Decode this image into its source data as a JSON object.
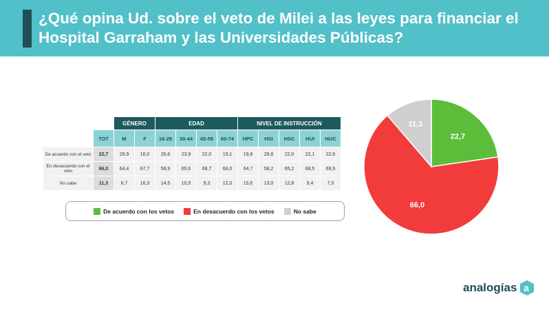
{
  "title": "¿Qué opina Ud. sobre el veto de Milei a las leyes para financiar el Hospital Garraham y las Universidades Públicas?",
  "table": {
    "groups": [
      "GÉNERO",
      "EDAD",
      "NIVEL DE INSTRUCCIÓN"
    ],
    "columns": [
      "TOT",
      "M",
      "F",
      "16-29",
      "30-44",
      "45-59",
      "60-74",
      "HPC",
      "HSI",
      "HSC",
      "HUI",
      "HUC"
    ],
    "rows": [
      {
        "label": "De acuerdo con el veto",
        "values": [
          "22,7",
          "28,9",
          "16,0",
          "26,6",
          "23,9",
          "22,0",
          "19,1",
          "19,8",
          "28,8",
          "22,0",
          "22,1",
          "22,6"
        ]
      },
      {
        "label": "En desacuerdo con el veto",
        "values": [
          "66,0",
          "64,4",
          "67,7",
          "58,9",
          "65,6",
          "68,7",
          "69,0",
          "64,7",
          "58,2",
          "65,2",
          "68,5",
          "69,9"
        ]
      },
      {
        "label": "No sabe",
        "values": [
          "11,3",
          "6,7",
          "16,3",
          "14,5",
          "10,5",
          "9,3",
          "12,0",
          "15,6",
          "13,0",
          "12,8",
          "9,4",
          "7,5"
        ]
      }
    ]
  },
  "chart_data": {
    "type": "pie",
    "labels": [
      "De acuerdo con los vetos",
      "En desacuerdo con los vetos",
      "No sabe"
    ],
    "values": [
      22.7,
      66.0,
      11.3
    ],
    "display": [
      "22,7",
      "66,0",
      "11,3"
    ],
    "colors": [
      "#5cbd3a",
      "#f23b3b",
      "#cfcfcf"
    ],
    "legend_position": "bottom-left"
  },
  "logo": {
    "text": "analogías",
    "mark": "a"
  }
}
